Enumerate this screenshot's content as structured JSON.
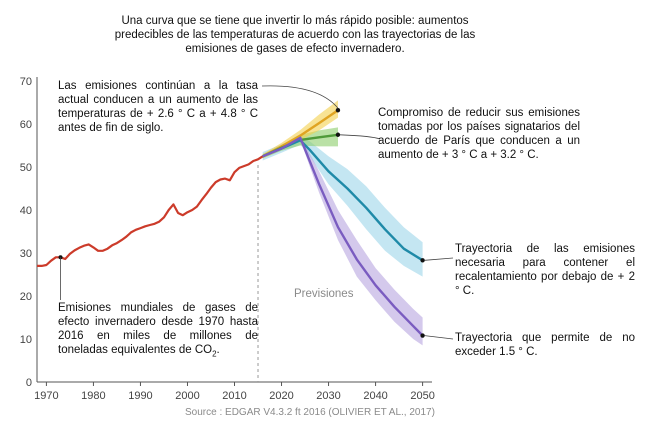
{
  "chart_data": {
    "type": "line",
    "title": "Una curva que se tiene que invertir lo más rápido posible: aumentos predecibles de las temperaturas de acuerdo con las trayectorias de las emisiones de gases de efecto invernadero.",
    "xlabel": "",
    "ylabel": "",
    "xlim": [
      1968,
      2052
    ],
    "ylim": [
      0,
      70
    ],
    "x_ticks": [
      1970,
      1980,
      1990,
      2000,
      2010,
      2020,
      2030,
      2040,
      2050
    ],
    "y_ticks": [
      0,
      10,
      20,
      30,
      40,
      50,
      60,
      70
    ],
    "grid": false,
    "divider_year": 2015,
    "divider_label": "Previsiones",
    "source": "Source : EDGAR V4.3.2 ft 2016 (OLIVIER ET AL., 2017)",
    "series": [
      {
        "key": "historical",
        "color": "#cc3b2a",
        "points": [
          [
            1968,
            27
          ],
          [
            1969,
            27
          ],
          [
            1970,
            27.2
          ],
          [
            1971,
            28.2
          ],
          [
            1972,
            29
          ],
          [
            1973,
            29
          ],
          [
            1974,
            28.6
          ],
          [
            1975,
            29.8
          ],
          [
            1976,
            30.6
          ],
          [
            1977,
            31.2
          ],
          [
            1978,
            31.7
          ],
          [
            1979,
            32
          ],
          [
            1980,
            31.3
          ],
          [
            1981,
            30.5
          ],
          [
            1982,
            30.5
          ],
          [
            1983,
            31
          ],
          [
            1984,
            31.8
          ],
          [
            1985,
            32.3
          ],
          [
            1986,
            33
          ],
          [
            1987,
            33.8
          ],
          [
            1988,
            34.8
          ],
          [
            1989,
            35.4
          ],
          [
            1990,
            35.8
          ],
          [
            1991,
            36.2
          ],
          [
            1992,
            36.5
          ],
          [
            1993,
            36.8
          ],
          [
            1994,
            37.3
          ],
          [
            1995,
            38.3
          ],
          [
            1996,
            40
          ],
          [
            1997,
            41.3
          ],
          [
            1998,
            39.3
          ],
          [
            1999,
            38.8
          ],
          [
            2000,
            39.5
          ],
          [
            2001,
            40
          ],
          [
            2002,
            40.8
          ],
          [
            2003,
            42.3
          ],
          [
            2004,
            43.7
          ],
          [
            2005,
            45.2
          ],
          [
            2006,
            46.5
          ],
          [
            2007,
            47.1
          ],
          [
            2008,
            47.3
          ],
          [
            2009,
            46.9
          ],
          [
            2010,
            48.8
          ],
          [
            2011,
            49.8
          ],
          [
            2012,
            50.2
          ],
          [
            2013,
            50.6
          ],
          [
            2014,
            51.4
          ],
          [
            2015,
            51.8
          ],
          [
            2016,
            52.5
          ]
        ]
      },
      {
        "key": "current_rate",
        "color": "#e0a422",
        "band_color": "#f4d04c",
        "points": [
          [
            2016,
            52.5
          ],
          [
            2020,
            54.8
          ],
          [
            2024,
            57.3
          ],
          [
            2028,
            60.2
          ],
          [
            2032,
            63.2
          ]
        ],
        "band_upper": [
          [
            2016,
            53
          ],
          [
            2020,
            55.6
          ],
          [
            2024,
            58.6
          ],
          [
            2028,
            62.2
          ],
          [
            2032,
            65.5
          ]
        ],
        "band_lower": [
          [
            2016,
            52
          ],
          [
            2020,
            54
          ],
          [
            2024,
            56.2
          ],
          [
            2028,
            58.5
          ],
          [
            2032,
            61.5
          ]
        ],
        "endpoint_value": 63.2
      },
      {
        "key": "paris_pledges",
        "color": "#4f9a3a",
        "band_color": "#8ccd6a",
        "points": [
          [
            2016,
            52.5
          ],
          [
            2020,
            54.5
          ],
          [
            2024,
            56.3
          ],
          [
            2028,
            56.9
          ],
          [
            2032,
            57.5
          ]
        ],
        "band_upper": [
          [
            2016,
            53
          ],
          [
            2020,
            55
          ],
          [
            2024,
            57.5
          ],
          [
            2028,
            58.5
          ],
          [
            2032,
            59.2
          ]
        ],
        "band_lower": [
          [
            2016,
            52
          ],
          [
            2020,
            53.8
          ],
          [
            2024,
            55
          ],
          [
            2028,
            54.8
          ],
          [
            2032,
            54.8
          ]
        ],
        "endpoint_value": 57.5
      },
      {
        "key": "two_degrees",
        "color": "#1f8aa8",
        "band_color": "#9dd5ea",
        "points": [
          [
            2016,
            52.5
          ],
          [
            2020,
            54.3
          ],
          [
            2024,
            56.2
          ],
          [
            2026,
            54
          ],
          [
            2030,
            49
          ],
          [
            2034,
            45
          ],
          [
            2038,
            40.5
          ],
          [
            2042,
            35.5
          ],
          [
            2046,
            31
          ],
          [
            2050,
            28.3
          ]
        ],
        "band_upper": [
          [
            2016,
            53.5
          ],
          [
            2020,
            55.3
          ],
          [
            2024,
            57.2
          ],
          [
            2026,
            56
          ],
          [
            2030,
            52.5
          ],
          [
            2034,
            49.5
          ],
          [
            2038,
            45.5
          ],
          [
            2042,
            40.5
          ],
          [
            2046,
            36
          ],
          [
            2050,
            32.5
          ]
        ],
        "band_lower": [
          [
            2016,
            51.5
          ],
          [
            2020,
            53.3
          ],
          [
            2024,
            55.2
          ],
          [
            2026,
            52.5
          ],
          [
            2030,
            46
          ],
          [
            2034,
            41
          ],
          [
            2038,
            35.5
          ],
          [
            2042,
            30.5
          ],
          [
            2046,
            27
          ],
          [
            2050,
            24.5
          ]
        ],
        "endpoint_value": 28.3
      },
      {
        "key": "one_point_five",
        "color": "#7a5cc0",
        "band_color": "#b7a5e0",
        "points": [
          [
            2016,
            52.5
          ],
          [
            2020,
            54.3
          ],
          [
            2024,
            56.8
          ],
          [
            2028,
            46
          ],
          [
            2032,
            36
          ],
          [
            2036,
            28.5
          ],
          [
            2040,
            22.5
          ],
          [
            2044,
            17.5
          ],
          [
            2048,
            13
          ],
          [
            2050,
            10.8
          ]
        ],
        "band_upper": [
          [
            2016,
            52.5
          ],
          [
            2020,
            54.6
          ],
          [
            2024,
            57.3
          ],
          [
            2028,
            49
          ],
          [
            2032,
            40
          ],
          [
            2036,
            33
          ],
          [
            2040,
            26.5
          ],
          [
            2044,
            21.5
          ],
          [
            2048,
            17
          ],
          [
            2050,
            15
          ]
        ],
        "band_lower": [
          [
            2016,
            52.5
          ],
          [
            2020,
            54
          ],
          [
            2024,
            56.3
          ],
          [
            2028,
            44
          ],
          [
            2032,
            33
          ],
          [
            2036,
            24.5
          ],
          [
            2040,
            19
          ],
          [
            2044,
            14
          ],
          [
            2048,
            10
          ],
          [
            2050,
            8.5
          ]
        ],
        "endpoint_value": 10.8
      }
    ],
    "annotations": {
      "current_rate": "Las emisiones continúan a la tasa actual conducen a un aumento de las temperaturas de + 2.6 ° C a + 4.8 ° C antes de fin de siglo.",
      "paris_pledges": "Compromiso de reducir sus emisiones tomadas por los países signatarios del acuerdo de París que conducen a un aumento de + 3 ° C a + 3.2 ° C.",
      "two_degrees": "Trayectoria de las emisiones necesaria para contener el recalentamiento por debajo de + 2 ° C.",
      "one_point_five": "Trayectoria que permite de no exceder 1.5 ° C.",
      "historical_prefix": "Emisiones mundiales de gases de efecto invernadero desde 1970 hasta 2016 en miles de millones de toneladas equivalentes de CO",
      "historical_sub": "2",
      "historical_suffix": "."
    }
  }
}
